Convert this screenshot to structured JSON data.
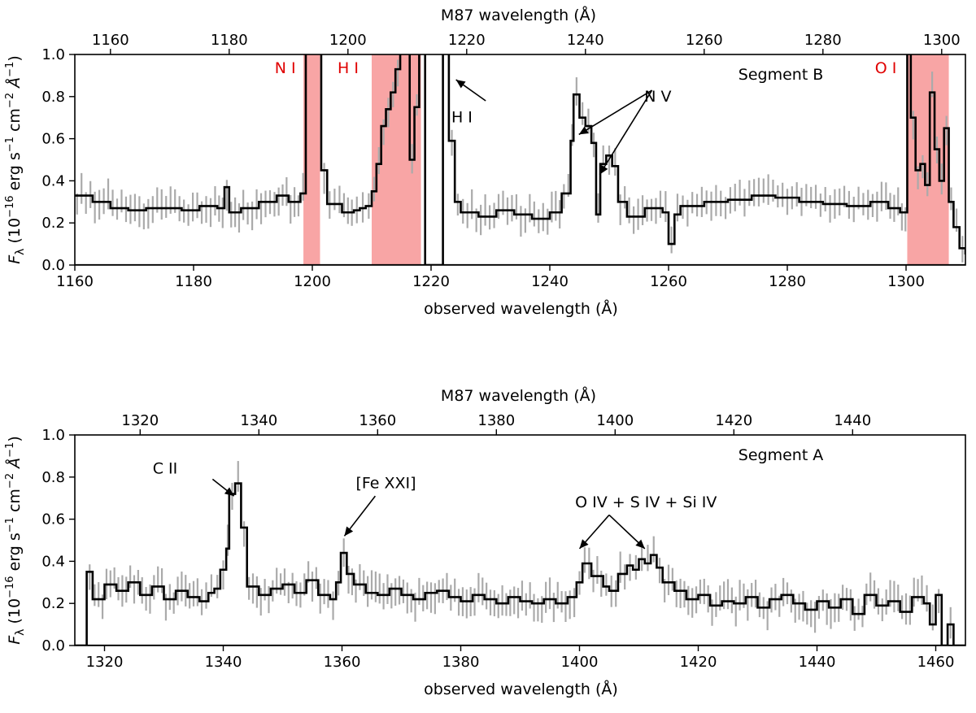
{
  "chart_data": [
    {
      "type": "line",
      "segment_label": "Segment B",
      "top_xlabel": "M87 wavelength (Å)",
      "xlabel": "observed wavelength (Å)",
      "ylabel_parts": {
        "f": "F",
        "lambda": "λ",
        "a": " (10",
        "e1": "−16",
        "b": " erg s",
        "e2": "−1",
        "c": " cm",
        "e3": "−2",
        "d": " Å",
        "e4": "−1",
        "close": ")"
      },
      "xlim": [
        1160,
        1310
      ],
      "ylim": [
        0,
        1.0
      ],
      "xticks": [
        1160,
        1180,
        1200,
        1220,
        1240,
        1260,
        1280,
        1300
      ],
      "xtick_labels": [
        "1160",
        "1180",
        "1200",
        "1220",
        "1240",
        "1260",
        "1280",
        "1300"
      ],
      "top_xticks": [
        1160,
        1180,
        1200,
        1220,
        1240,
        1260,
        1280,
        1300
      ],
      "top_xtick_labels": [
        "1160",
        "1180",
        "1200",
        "1220",
        "1240",
        "1260",
        "1280",
        "1300"
      ],
      "yticks": [
        0.0,
        0.2,
        0.4,
        0.6,
        0.8,
        1.0
      ],
      "ytick_labels": [
        "0.0",
        "0.2",
        "0.4",
        "0.6",
        "0.8",
        "1.0"
      ],
      "masked_regions": [
        [
          1198.5,
          1201.3
        ],
        [
          1210.0,
          1218.3
        ],
        [
          1300.2,
          1307.2
        ]
      ],
      "mask_color": "#f8a5a5",
      "red_labels": [
        {
          "text": "N I",
          "x": 1197.2,
          "y": 0.935
        },
        {
          "text": "H I",
          "x": 1207.8,
          "y": 0.935
        },
        {
          "text": "O I",
          "x": 1298.4,
          "y": 0.935
        }
      ],
      "annotations": [
        {
          "text": "H I",
          "x": 1225.2,
          "y": 0.7,
          "arrow": [
            [
              1229.2,
              0.78,
              1224.2,
              0.88
            ]
          ]
        },
        {
          "text": "N V",
          "x": 1258.2,
          "y": 0.8,
          "arrow": [
            [
              1257.2,
              0.83,
              1244.9,
              0.62
            ],
            [
              1257.2,
              0.83,
              1248.4,
              0.43
            ]
          ]
        }
      ],
      "series": [
        {
          "name": "error",
          "kind": "errorbar",
          "color": "#aaaaaa"
        },
        {
          "name": "flux",
          "kind": "step",
          "color": "#000000",
          "x": [
            1160.0,
            1163.0,
            1166.0,
            1169.0,
            1172.0,
            1175.0,
            1178.0,
            1181.0,
            1184.0,
            1185.2,
            1186.0,
            1188.0,
            1191.0,
            1194.0,
            1196.0,
            1198.0,
            1198.9,
            1199.8,
            1200.6,
            1201.5,
            1202.5,
            1205.0,
            1207.0,
            1208.0,
            1209.0,
            1210.0,
            1210.8,
            1211.6,
            1212.4,
            1213.2,
            1214.0,
            1214.8,
            1215.6,
            1216.4,
            1217.2,
            1218.0,
            1219.0,
            1220.0,
            1221.0,
            1222.0,
            1223.0,
            1224.0,
            1225.0,
            1228.0,
            1231.0,
            1234.0,
            1237.0,
            1240.0,
            1242.0,
            1243.5,
            1244.0,
            1245.0,
            1246.0,
            1247.0,
            1247.8,
            1248.5,
            1249.5,
            1250.5,
            1251.5,
            1253.0,
            1256.0,
            1259.0,
            1260.0,
            1261.0,
            1262.0,
            1266.0,
            1270.0,
            1274.0,
            1278.0,
            1282.0,
            1286.0,
            1290.0,
            1294.0,
            1297.0,
            1299.0,
            1300.2,
            1300.8,
            1301.6,
            1302.4,
            1303.2,
            1304.0,
            1304.8,
            1305.6,
            1306.4,
            1307.2,
            1308.0,
            1309.0,
            1310.0
          ],
          "y": [
            0.33,
            0.3,
            0.27,
            0.26,
            0.27,
            0.27,
            0.26,
            0.28,
            0.27,
            0.37,
            0.25,
            0.27,
            0.3,
            0.33,
            0.3,
            0.34,
            1.1,
            1.1,
            1.1,
            0.45,
            0.29,
            0.25,
            0.26,
            0.27,
            0.28,
            0.35,
            0.48,
            0.66,
            0.74,
            0.82,
            0.93,
            1.1,
            1.1,
            0.5,
            0.75,
            1.1,
            0.0,
            0.0,
            0.0,
            1.1,
            0.59,
            0.3,
            0.25,
            0.23,
            0.26,
            0.24,
            0.22,
            0.25,
            0.34,
            0.59,
            0.81,
            0.7,
            0.66,
            0.58,
            0.24,
            0.48,
            0.52,
            0.47,
            0.3,
            0.23,
            0.27,
            0.25,
            0.1,
            0.24,
            0.28,
            0.3,
            0.31,
            0.33,
            0.32,
            0.3,
            0.29,
            0.28,
            0.3,
            0.27,
            0.25,
            1.1,
            0.7,
            0.45,
            0.48,
            0.38,
            0.82,
            0.55,
            0.4,
            0.65,
            0.3,
            0.18,
            0.08,
            0.05
          ]
        }
      ]
    },
    {
      "type": "line",
      "segment_label": "Segment A",
      "top_xlabel": "M87 wavelength (Å)",
      "xlabel": "observed wavelength (Å)",
      "ylabel_parts": {
        "f": "F",
        "lambda": "λ",
        "a": " (10",
        "e1": "−16",
        "b": " erg s",
        "e2": "−1",
        "c": " cm",
        "e3": "−2",
        "d": " Å",
        "e4": "−1",
        "close": ")"
      },
      "xlim": [
        1315,
        1465
      ],
      "ylim": [
        0,
        1.0
      ],
      "xticks": [
        1320,
        1340,
        1360,
        1380,
        1400,
        1420,
        1440,
        1460
      ],
      "xtick_labels": [
        "1320",
        "1340",
        "1360",
        "1380",
        "1400",
        "1420",
        "1440",
        "1460"
      ],
      "top_xticks": [
        1320,
        1340,
        1360,
        1380,
        1400,
        1420,
        1440
      ],
      "top_xtick_labels": [
        "1320",
        "1340",
        "1360",
        "1380",
        "1400",
        "1420",
        "1440"
      ],
      "yticks": [
        0.0,
        0.2,
        0.4,
        0.6,
        0.8,
        1.0
      ],
      "ytick_labels": [
        "0.0",
        "0.2",
        "0.4",
        "0.6",
        "0.8",
        "1.0"
      ],
      "masked_regions": [],
      "red_labels": [],
      "annotations": [
        {
          "text": "C II",
          "x": 1330.2,
          "y": 0.84,
          "arrow": [
            [
              1338.2,
              0.79,
              1341.8,
              0.71
            ]
          ]
        },
        {
          "text": "[Fe XXI]",
          "x": 1367.4,
          "y": 0.77,
          "arrow": [
            [
              1365.6,
              0.71,
              1360.4,
              0.52
            ]
          ]
        },
        {
          "text": "O IV + S IV + Si IV",
          "x": 1411.2,
          "y": 0.68,
          "arrow": [
            [
              1405.0,
              0.62,
              1400.0,
              0.46
            ],
            [
              1405.0,
              0.62,
              1411.0,
              0.46
            ]
          ]
        }
      ],
      "series": [
        {
          "name": "error",
          "kind": "errorbar",
          "color": "#aaaaaa"
        },
        {
          "name": "flux",
          "kind": "step",
          "color": "#000000",
          "x": [
            1315.0,
            1316.0,
            1317.0,
            1318.0,
            1320.0,
            1322.0,
            1324.0,
            1326.0,
            1328.0,
            1330.0,
            1332.0,
            1334.0,
            1336.0,
            1337.5,
            1338.5,
            1339.5,
            1340.5,
            1341.0,
            1342.0,
            1343.0,
            1344.0,
            1346.0,
            1348.0,
            1350.0,
            1352.0,
            1354.0,
            1356.0,
            1358.0,
            1359.0,
            1359.8,
            1360.8,
            1362.0,
            1364.0,
            1366.0,
            1368.0,
            1370.0,
            1372.0,
            1374.0,
            1376.0,
            1378.0,
            1380.0,
            1382.0,
            1384.0,
            1386.0,
            1388.0,
            1390.0,
            1392.0,
            1394.0,
            1396.0,
            1398.0,
            1399.5,
            1400.5,
            1402.0,
            1404.0,
            1405.0,
            1406.5,
            1408.0,
            1409.0,
            1410.0,
            1411.0,
            1412.0,
            1413.0,
            1414.0,
            1416.0,
            1418.0,
            1420.0,
            1422.0,
            1424.0,
            1426.0,
            1428.0,
            1430.0,
            1432.0,
            1434.0,
            1436.0,
            1438.0,
            1440.0,
            1442.0,
            1444.0,
            1446.0,
            1448.0,
            1450.0,
            1452.0,
            1454.0,
            1456.0,
            1458.0,
            1459.0,
            1460.0,
            1461.0,
            1462.0,
            1463.0
          ],
          "y": [
            0.0,
            0.0,
            0.35,
            0.22,
            0.29,
            0.26,
            0.3,
            0.24,
            0.28,
            0.22,
            0.26,
            0.23,
            0.21,
            0.25,
            0.27,
            0.36,
            0.46,
            0.72,
            0.77,
            0.56,
            0.28,
            0.24,
            0.27,
            0.29,
            0.25,
            0.31,
            0.24,
            0.22,
            0.3,
            0.44,
            0.34,
            0.29,
            0.25,
            0.24,
            0.27,
            0.24,
            0.22,
            0.25,
            0.26,
            0.23,
            0.21,
            0.24,
            0.22,
            0.2,
            0.23,
            0.21,
            0.2,
            0.22,
            0.2,
            0.23,
            0.3,
            0.39,
            0.33,
            0.28,
            0.26,
            0.34,
            0.38,
            0.36,
            0.41,
            0.39,
            0.43,
            0.37,
            0.3,
            0.26,
            0.22,
            0.24,
            0.19,
            0.21,
            0.2,
            0.23,
            0.18,
            0.22,
            0.24,
            0.2,
            0.17,
            0.21,
            0.18,
            0.22,
            0.15,
            0.24,
            0.19,
            0.21,
            0.16,
            0.23,
            0.2,
            0.1,
            0.24,
            0.0,
            0.1,
            0.0
          ]
        }
      ]
    }
  ]
}
